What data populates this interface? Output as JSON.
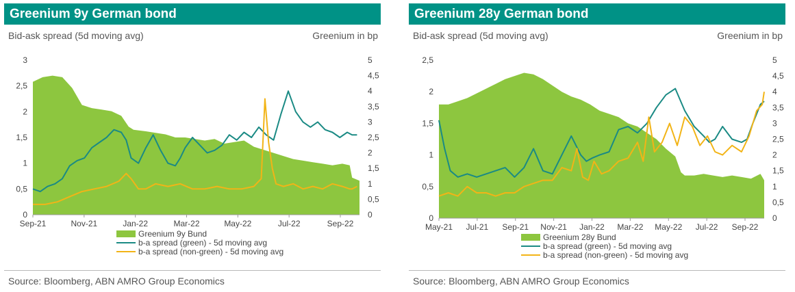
{
  "colors": {
    "header_bg": "#009286",
    "area": "#8DC63F",
    "green_line": "#1A8A84",
    "nongreen_line": "#F2B417"
  },
  "chart_data": [
    {
      "type": "area+line",
      "title": "Greenium 9y German bond",
      "left_axis_label": "Bid-ask spread (5d moving avg)",
      "right_axis_label": "Greenium in bp",
      "source": "Source: Bloomberg, ABN AMRO Group Economics",
      "x_ticks": [
        "Sep-21",
        "Nov-21",
        "Jan-22",
        "Mar-22",
        "May-22",
        "Jul-22",
        "Sep-22"
      ],
      "y_left": {
        "min": 0,
        "max": 3,
        "ticks": [
          "0",
          "0,5",
          "1",
          "1,5",
          "2",
          "2,5",
          "3"
        ]
      },
      "y_right": {
        "min": 0,
        "max": 5,
        "ticks": [
          "0",
          "0,5",
          "1",
          "1,5",
          "2",
          "2,5",
          "3",
          "3,5",
          "4",
          "4,5",
          "5"
        ]
      },
      "x_range": [
        0,
        13.3
      ],
      "series": [
        {
          "name": "Greenium 9y Bund",
          "kind": "area",
          "axis": "right",
          "x": [
            0,
            0.4,
            0.8,
            1.2,
            1.6,
            2.0,
            2.4,
            2.8,
            3.2,
            3.6,
            3.9,
            4.1,
            4.6,
            5.0,
            5.4,
            5.8,
            6.2,
            6.6,
            7.0,
            7.4,
            7.8,
            8.2,
            8.6,
            9.0,
            9.4,
            9.8,
            10.2,
            10.6,
            11.0,
            11.4,
            11.8,
            12.2,
            12.6,
            12.9,
            13.0,
            13.3
          ],
          "values": [
            4.3,
            4.45,
            4.5,
            4.45,
            4.1,
            3.55,
            3.45,
            3.4,
            3.35,
            3.2,
            2.85,
            2.75,
            2.7,
            2.65,
            2.6,
            2.5,
            2.5,
            2.45,
            2.4,
            2.45,
            2.3,
            2.35,
            2.4,
            2.2,
            2.1,
            2.0,
            1.9,
            1.8,
            1.75,
            1.7,
            1.65,
            1.6,
            1.65,
            1.6,
            1.2,
            1.1
          ]
        },
        {
          "name": "b-a spread (green) - 5d moving avg",
          "kind": "line",
          "axis": "left",
          "x": [
            0,
            0.3,
            0.6,
            0.9,
            1.2,
            1.5,
            1.8,
            2.1,
            2.4,
            2.7,
            3.0,
            3.3,
            3.6,
            3.8,
            4.0,
            4.3,
            4.6,
            4.9,
            5.2,
            5.5,
            5.8,
            6.0,
            6.2,
            6.5,
            6.8,
            7.1,
            7.4,
            7.7,
            8.0,
            8.3,
            8.6,
            8.9,
            9.2,
            9.5,
            9.8,
            10.1,
            10.4,
            10.7,
            11.0,
            11.3,
            11.6,
            11.9,
            12.2,
            12.5,
            12.8,
            13.0,
            13.2
          ],
          "values": [
            0.5,
            0.45,
            0.55,
            0.6,
            0.7,
            0.95,
            1.05,
            1.1,
            1.3,
            1.4,
            1.5,
            1.65,
            1.6,
            1.45,
            1.1,
            1.0,
            1.3,
            1.55,
            1.25,
            1.0,
            0.95,
            1.1,
            1.3,
            1.5,
            1.35,
            1.2,
            1.25,
            1.35,
            1.55,
            1.45,
            1.6,
            1.5,
            1.7,
            1.55,
            1.45,
            1.95,
            2.4,
            2.0,
            1.8,
            1.7,
            1.8,
            1.65,
            1.6,
            1.5,
            1.6,
            1.55,
            1.55
          ]
        },
        {
          "name": "b-a spread (non-green) - 5d moving avg",
          "kind": "line",
          "axis": "left",
          "x": [
            0,
            0.5,
            1.0,
            1.5,
            2.0,
            2.5,
            3.0,
            3.5,
            3.8,
            4.0,
            4.3,
            4.6,
            5.0,
            5.5,
            6.0,
            6.5,
            7.0,
            7.5,
            8.0,
            8.5,
            9.0,
            9.3,
            9.45,
            9.6,
            9.75,
            9.9,
            10.2,
            10.6,
            11.0,
            11.4,
            11.8,
            12.2,
            12.6,
            12.9,
            13.0,
            13.2
          ],
          "values": [
            0.2,
            0.2,
            0.25,
            0.35,
            0.45,
            0.5,
            0.55,
            0.65,
            0.8,
            0.7,
            0.5,
            0.5,
            0.6,
            0.55,
            0.6,
            0.5,
            0.5,
            0.55,
            0.5,
            0.5,
            0.55,
            0.7,
            2.25,
            1.4,
            0.9,
            0.6,
            0.55,
            0.6,
            0.5,
            0.55,
            0.5,
            0.6,
            0.55,
            0.5,
            0.5,
            0.55
          ]
        }
      ],
      "legend": [
        "Greenium 9y Bund",
        "b-a spread (green) - 5d moving avg",
        "b-a spread (non-green) - 5d moving avg"
      ]
    },
    {
      "type": "area+line",
      "title": "Greenium 28y German bond",
      "left_axis_label": "Bid-ask spread (5d moving avg)",
      "right_axis_label": "Greenium in bp",
      "source": "Source: Bloomberg, ABN AMRO Group Economics",
      "x_ticks": [
        "May-21",
        "Jul-21",
        "Sep-21",
        "Nov-21",
        "Jan-22",
        "Mar-22",
        "May-22",
        "Jul-22",
        "Sep-22"
      ],
      "y_left": {
        "min": 0,
        "max": 2.5,
        "ticks": [
          "0",
          "0,5",
          "1",
          "1,5",
          "2",
          "2,5"
        ]
      },
      "y_right": {
        "min": 0,
        "max": 5,
        "ticks": [
          "0",
          "0,5",
          "1",
          "1,5",
          "2",
          "2,5",
          "3",
          "3,5",
          "4",
          "4,5",
          "5"
        ]
      },
      "x_range": [
        0,
        17.2
      ],
      "series": [
        {
          "name": "Greenium 28y Bund",
          "kind": "area",
          "axis": "right",
          "x": [
            0,
            0.5,
            1,
            1.5,
            2,
            2.5,
            3,
            3.5,
            4,
            4.5,
            5,
            5.5,
            6,
            6.5,
            7,
            7.5,
            8,
            8.5,
            9,
            9.5,
            10,
            10.5,
            11,
            11.5,
            12,
            12.5,
            12.8,
            13,
            13.5,
            14,
            14.5,
            15,
            15.5,
            16,
            16.5,
            17,
            17.2
          ],
          "values": [
            3.6,
            3.6,
            3.7,
            3.8,
            3.95,
            4.1,
            4.25,
            4.4,
            4.5,
            4.6,
            4.55,
            4.4,
            4.2,
            4.0,
            3.85,
            3.75,
            3.6,
            3.4,
            3.3,
            3.2,
            3.0,
            2.9,
            2.7,
            2.5,
            2.2,
            1.95,
            1.45,
            1.35,
            1.35,
            1.4,
            1.35,
            1.3,
            1.35,
            1.3,
            1.25,
            1.4,
            1.2
          ]
        },
        {
          "name": "b-a spread (green) - 5d moving avg",
          "kind": "line",
          "axis": "left",
          "x": [
            0,
            0.3,
            0.6,
            1.0,
            1.5,
            2.0,
            2.5,
            3.0,
            3.5,
            4.0,
            4.5,
            5.0,
            5.5,
            6.0,
            6.5,
            7.0,
            7.5,
            7.8,
            8.1,
            8.5,
            9.0,
            9.5,
            10.0,
            10.5,
            11.0,
            11.5,
            12.0,
            12.5,
            13.0,
            13.5,
            14.0,
            14.3,
            14.6,
            15.0,
            15.5,
            16.0,
            16.3,
            16.6,
            17.0,
            17.2
          ],
          "values": [
            1.55,
            1.1,
            0.75,
            0.65,
            0.7,
            0.65,
            0.7,
            0.75,
            0.8,
            0.65,
            0.8,
            1.1,
            0.75,
            0.7,
            1.0,
            1.3,
            1.0,
            0.9,
            0.95,
            1.0,
            1.05,
            1.4,
            1.45,
            1.35,
            1.5,
            1.75,
            1.95,
            2.05,
            1.7,
            1.45,
            1.3,
            1.2,
            1.25,
            1.45,
            1.25,
            1.2,
            1.25,
            1.5,
            1.8,
            1.85
          ]
        },
        {
          "name": "b-a spread (non-green) - 5d moving avg",
          "kind": "line",
          "axis": "left",
          "x": [
            0,
            0.5,
            1.0,
            1.5,
            2.0,
            2.5,
            3.0,
            3.5,
            4.0,
            4.5,
            5.0,
            5.5,
            6.0,
            6.5,
            7.0,
            7.3,
            7.6,
            7.9,
            8.2,
            8.6,
            9.0,
            9.5,
            10.0,
            10.5,
            10.8,
            11.1,
            11.4,
            11.8,
            12.2,
            12.6,
            13.0,
            13.4,
            13.8,
            14.2,
            14.6,
            15.0,
            15.5,
            16.0,
            16.4,
            16.8,
            17.1,
            17.2
          ],
          "values": [
            0.35,
            0.4,
            0.35,
            0.5,
            0.4,
            0.4,
            0.35,
            0.4,
            0.4,
            0.5,
            0.55,
            0.6,
            0.6,
            0.8,
            0.75,
            1.1,
            0.65,
            0.6,
            0.9,
            0.7,
            0.75,
            0.9,
            0.95,
            1.2,
            0.9,
            1.6,
            1.05,
            1.2,
            1.5,
            1.15,
            1.6,
            1.45,
            1.15,
            1.3,
            1.05,
            1.0,
            1.15,
            1.05,
            1.3,
            1.7,
            1.8,
            2.0
          ]
        }
      ],
      "legend": [
        "Greenium 28y Bund",
        "b-a spread (green) - 5d moving avg",
        "b-a spread (non-green) - 5d moving avg"
      ]
    }
  ]
}
